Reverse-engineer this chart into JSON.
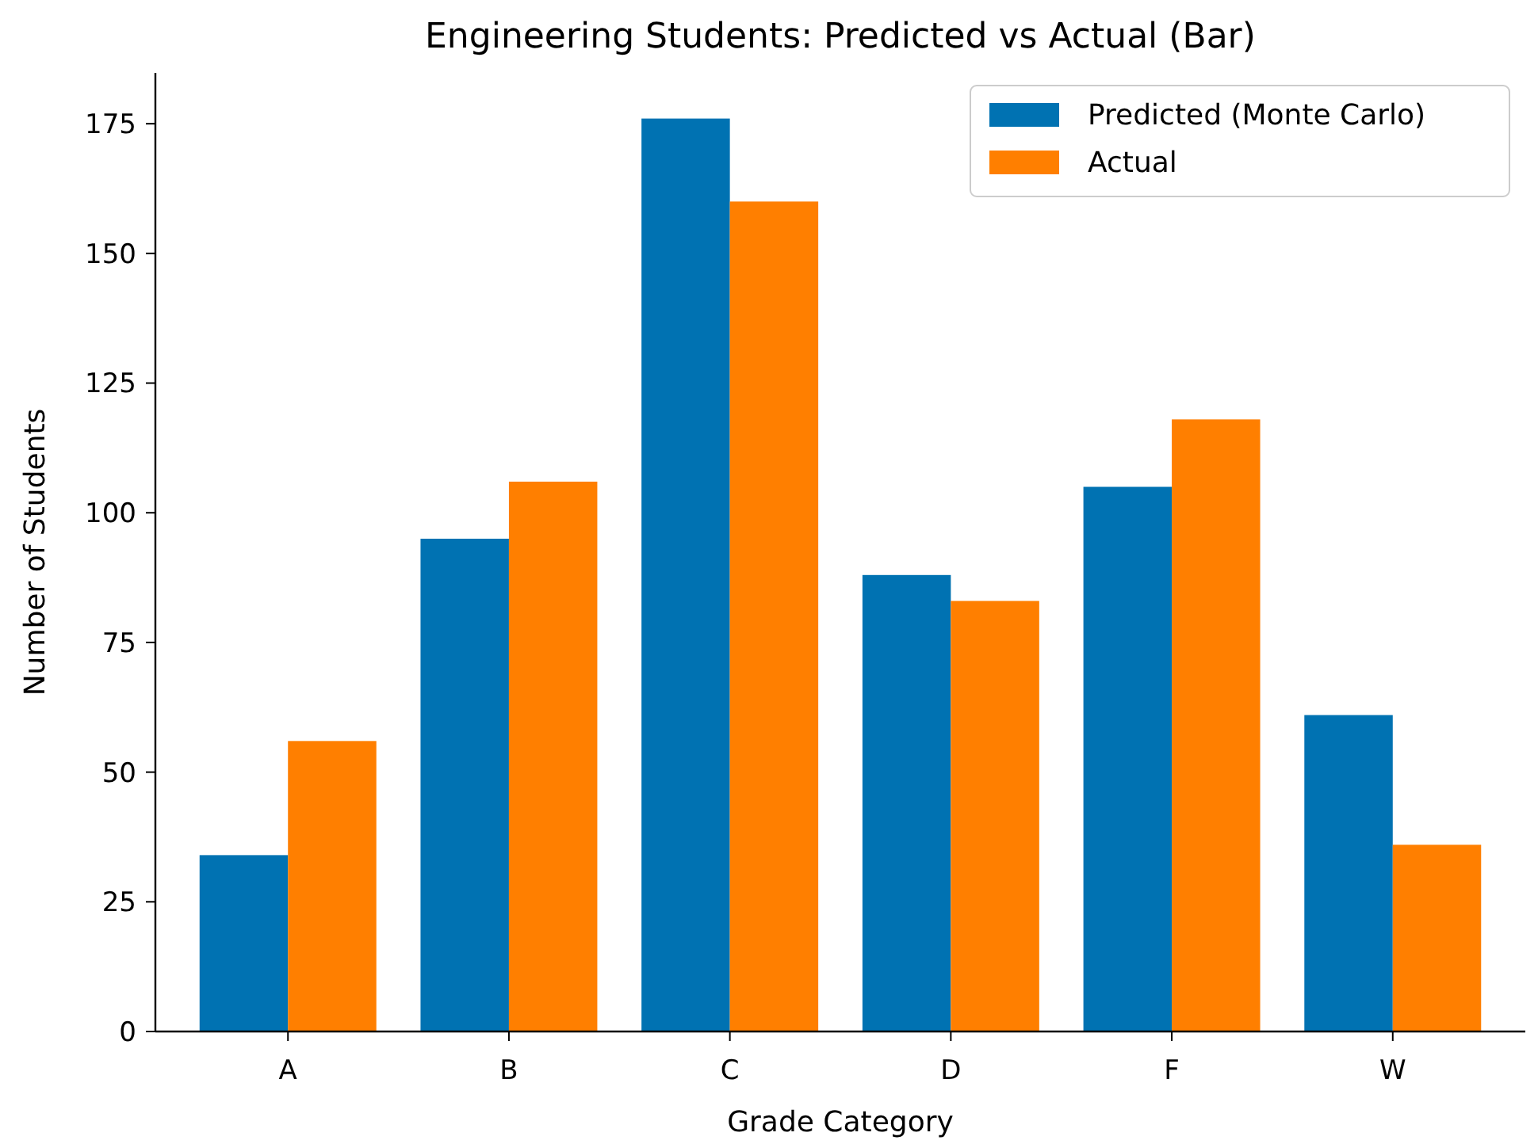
{
  "chart_data": {
    "type": "bar",
    "title": "Engineering Students: Predicted vs Actual (Bar)",
    "xlabel": "Grade Category",
    "ylabel": "Number of Students",
    "categories": [
      "A",
      "B",
      "C",
      "D",
      "F",
      "W"
    ],
    "series": [
      {
        "name": "Predicted (Monte Carlo)",
        "color": "#0072b2",
        "values": [
          34,
          95,
          176,
          88,
          105,
          61
        ]
      },
      {
        "name": "Actual",
        "color": "#ff7f00",
        "values": [
          56,
          106,
          160,
          83,
          118,
          36
        ]
      }
    ],
    "ylim": [
      0,
      184.8
    ],
    "yticks": [
      0,
      25,
      50,
      75,
      100,
      125,
      150,
      175
    ],
    "grid": false,
    "legend": "top right"
  }
}
